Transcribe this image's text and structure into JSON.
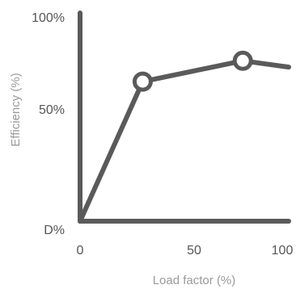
{
  "chart_data": {
    "type": "line",
    "title": "",
    "xlabel": "Load factor (%)",
    "ylabel": "Efficiency  (%)",
    "xlim": [
      0,
      100
    ],
    "ylim": [
      0,
      100
    ],
    "x_ticks": [
      "0",
      "50",
      "100"
    ],
    "y_ticks": [
      "D%",
      "50%",
      "100%"
    ],
    "series": [
      {
        "x": [
          0,
          30,
          78,
          100
        ],
        "y": [
          0,
          67,
          77,
          74
        ],
        "markers": [
          false,
          true,
          true,
          false
        ]
      }
    ],
    "grid": false,
    "legend": "none",
    "colors": {
      "line": "#5a5a5a",
      "marker_fill": "#ffffff",
      "axis": "#5a5a5a"
    }
  }
}
